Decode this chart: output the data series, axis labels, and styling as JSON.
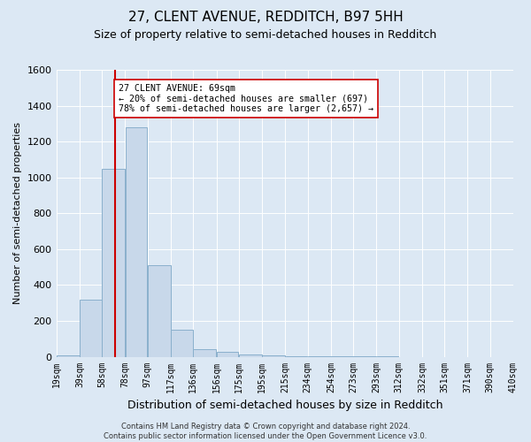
{
  "title": "27, CLENT AVENUE, REDDITCH, B97 5HH",
  "subtitle": "Size of property relative to semi-detached houses in Redditch",
  "xlabel": "Distribution of semi-detached houses by size in Redditch",
  "ylabel": "Number of semi-detached properties",
  "footer": "Contains HM Land Registry data © Crown copyright and database right 2024.\nContains public sector information licensed under the Open Government Licence v3.0.",
  "bin_edges": [
    19,
    39,
    58,
    78,
    97,
    117,
    136,
    156,
    175,
    195,
    215,
    234,
    254,
    273,
    293,
    312,
    332,
    351,
    371,
    390,
    410
  ],
  "values": [
    10,
    320,
    1050,
    1280,
    510,
    150,
    40,
    25,
    15,
    10,
    5,
    2,
    2,
    1,
    1,
    0,
    0,
    0,
    0,
    0
  ],
  "bar_color": "#c8d8ea",
  "bar_edge_color": "#8ab0cc",
  "property_size": 69,
  "property_line_color": "#cc0000",
  "annotation_text": "27 CLENT AVENUE: 69sqm\n← 20% of semi-detached houses are smaller (697)\n78% of semi-detached houses are larger (2,657) →",
  "annotation_box_color": "#ffffff",
  "annotation_box_edge": "#cc0000",
  "ylim": [
    0,
    1600
  ],
  "background_color": "#dce8f4",
  "plot_bg_color": "#dce8f4",
  "grid_color": "#ffffff",
  "title_fontsize": 11,
  "subtitle_fontsize": 9,
  "ylabel_fontsize": 8,
  "xlabel_fontsize": 9,
  "tick_label_fontsize": 7,
  "footer_fontsize": 6
}
